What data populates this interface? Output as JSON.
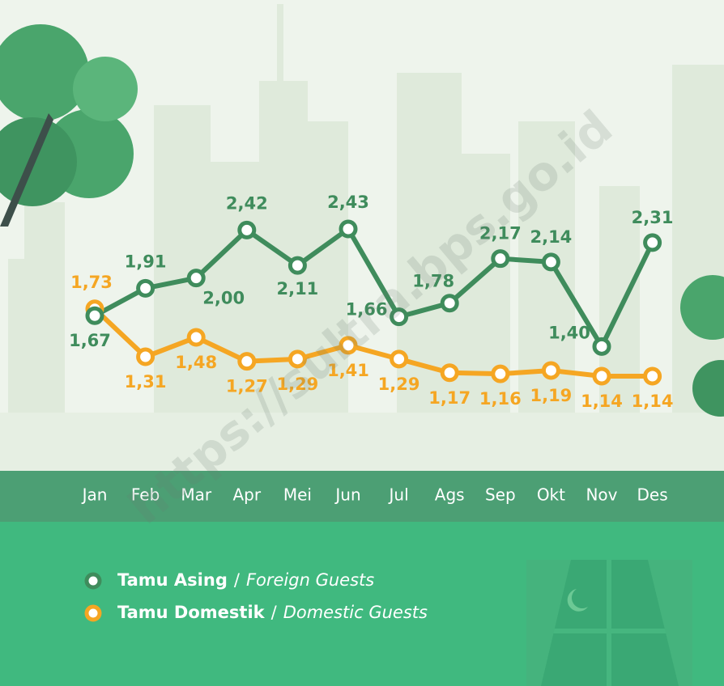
{
  "chart_data": {
    "type": "line",
    "categories": [
      "Jan",
      "Feb",
      "Mar",
      "Apr",
      "Mei",
      "Jun",
      "Jul",
      "Ags",
      "Sep",
      "Okt",
      "Nov",
      "Des"
    ],
    "series": [
      {
        "name": "Tamu Asing",
        "name_en": "Foreign Guests",
        "color": "#3f8c5c",
        "values": [
          1.67,
          1.91,
          2.0,
          2.42,
          2.11,
          2.43,
          1.66,
          1.78,
          2.17,
          2.14,
          1.4,
          2.31
        ],
        "value_labels": [
          "1,67",
          "1,91",
          "2,00",
          "2,42",
          "2,11",
          "2,43",
          "1,66",
          "1,78",
          "2,17",
          "2,14",
          "1,40",
          "2,31"
        ]
      },
      {
        "name": "Tamu Domestik",
        "name_en": "Domestic Guests",
        "color": "#f5a623",
        "values": [
          1.73,
          1.31,
          1.48,
          1.27,
          1.29,
          1.41,
          1.29,
          1.17,
          1.16,
          1.19,
          1.14,
          1.14
        ],
        "value_labels": [
          "1,73",
          "1,31",
          "1,48",
          "1,27",
          "1,29",
          "1,41",
          "1,29",
          "1,17",
          "1,16",
          "1,19",
          "1,14",
          "1,14"
        ]
      }
    ],
    "legend_separator": "/",
    "watermark": "https://sultra.bps.go.id"
  }
}
